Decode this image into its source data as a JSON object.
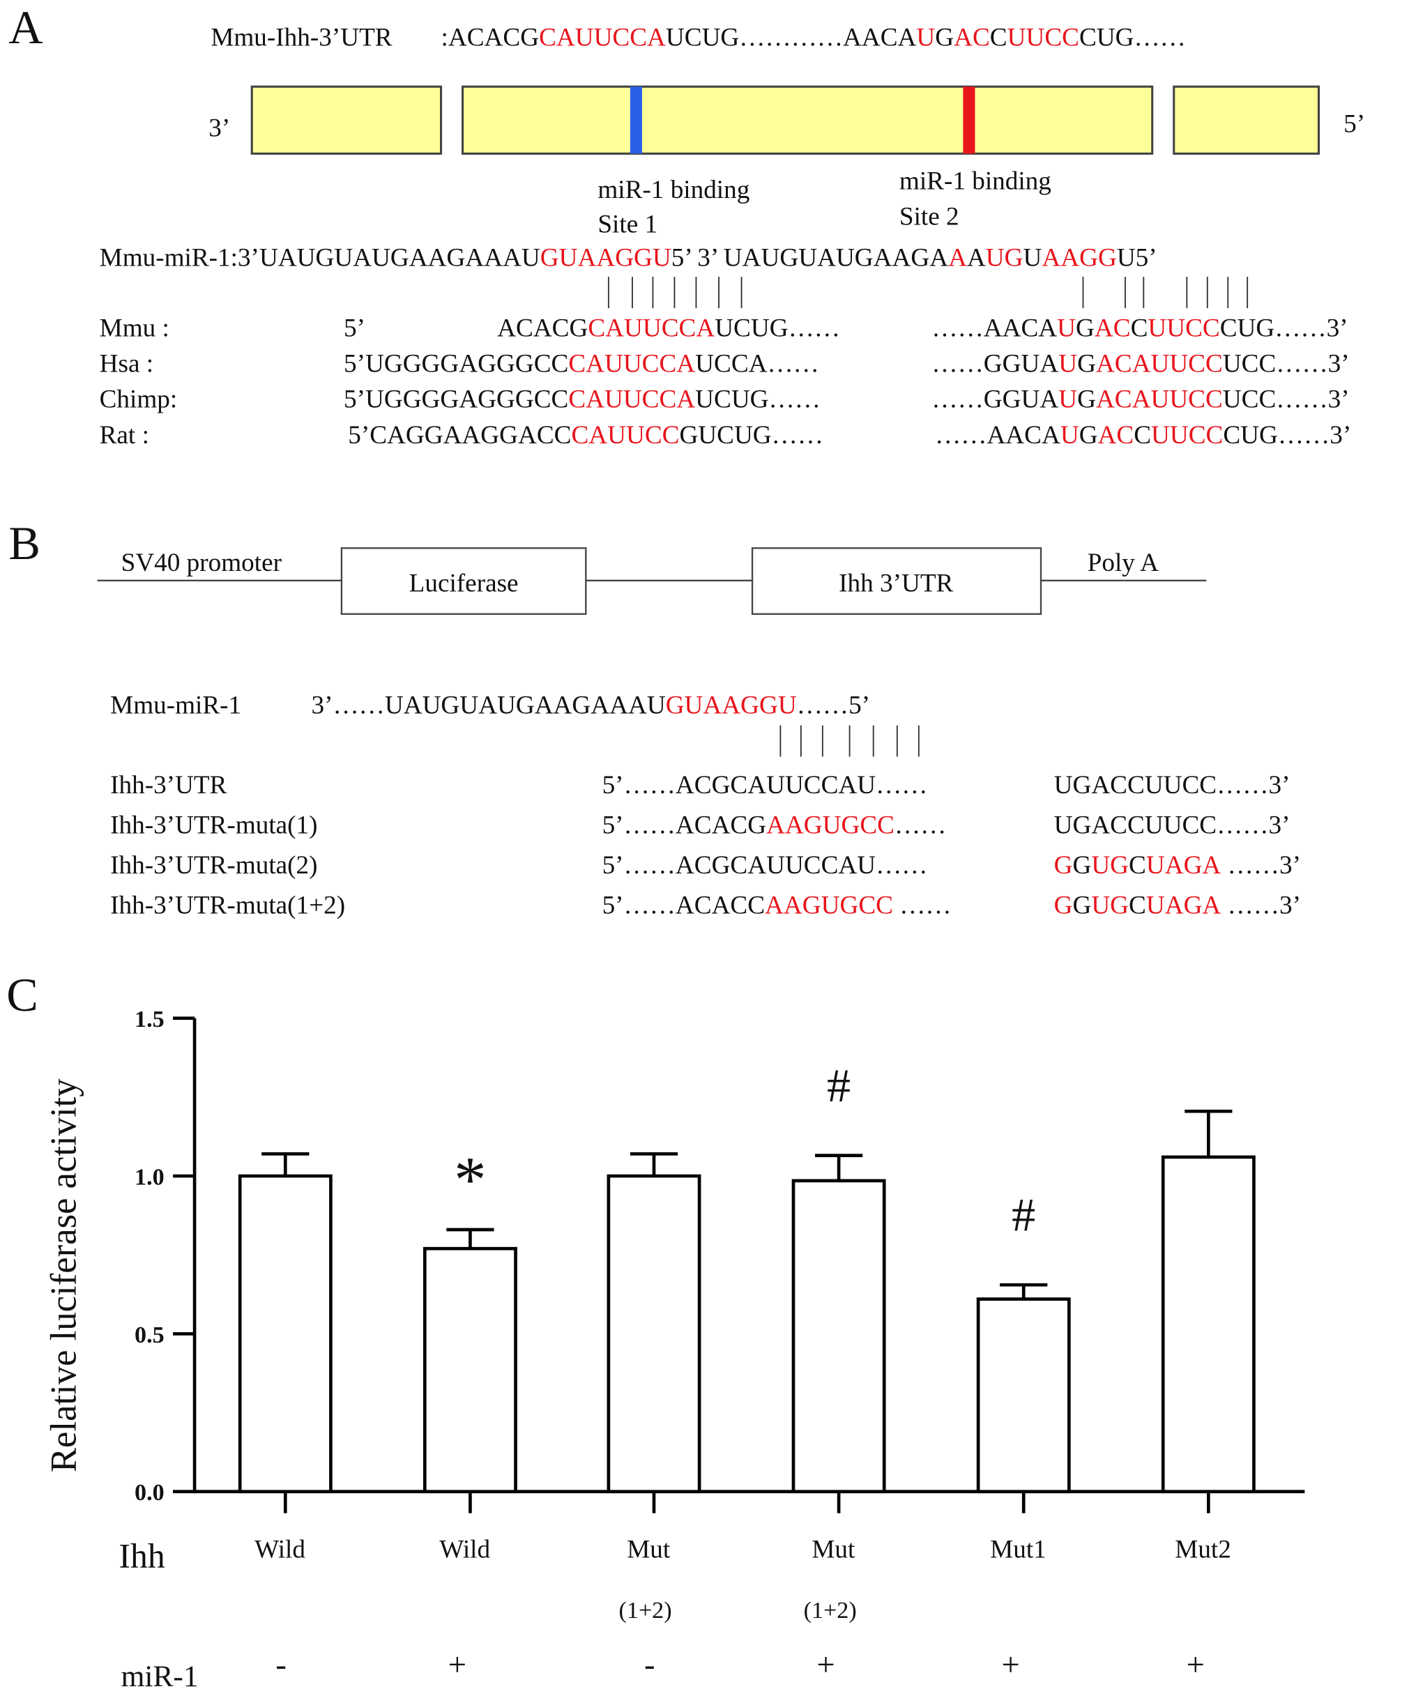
{
  "colors": {
    "highlight": "#e8141b",
    "box_fill": "#ffff99",
    "site1": "#2a5fe8",
    "site2": "#e8141b",
    "ink": "#111111"
  },
  "panel_a": {
    "letter": "A",
    "utr_label": "Mmu-Ihh-3’UTR",
    "utr_seq": [
      {
        "t": ":ACACG"
      },
      {
        "t": "CAUUCCA",
        "r": 1
      },
      {
        "t": "UCUG…………AACA"
      },
      {
        "t": "U",
        "r": 1
      },
      {
        "t": "G"
      },
      {
        "t": "AC",
        "r": 1
      },
      {
        "t": "C"
      },
      {
        "t": "UUCC",
        "r": 1
      },
      {
        "t": "CUG……"
      }
    ],
    "end3": "3’",
    "end5": "5’",
    "site1_label": "miR-1 binding",
    "site1_name": "Site 1",
    "site2_label": "miR-1 binding",
    "site2_name": "Site 2",
    "mir_seq": [
      {
        "t": "Mmu-miR-1:3’UAUGUAUGAAGAAAU"
      },
      {
        "t": "GUAAGGU",
        "r": 1
      },
      {
        "t": "5’ 3’ UAUGUAUGAAGA"
      },
      {
        "t": "A",
        "r": 1
      },
      {
        "t": "A"
      },
      {
        "t": "UG",
        "r": 1
      },
      {
        "t": "U"
      },
      {
        "t": "AAGG",
        "r": 1
      },
      {
        "t": "U5’"
      }
    ],
    "rows": [
      {
        "label": "Mmu :",
        "prefix": "5’",
        "left": [
          {
            "t": "ACACG"
          },
          {
            "t": "CAUUCCA",
            "r": 1
          },
          {
            "t": "UCUG……"
          }
        ],
        "right": [
          {
            "t": "……AACA"
          },
          {
            "t": "U",
            "r": 1
          },
          {
            "t": "G"
          },
          {
            "t": "AC",
            "r": 1
          },
          {
            "t": "C"
          },
          {
            "t": "UUCC",
            "r": 1
          },
          {
            "t": "CUG……3’"
          }
        ]
      },
      {
        "label": "Hsa :",
        "prefix": "",
        "left": [
          {
            "t": "5’UGGGGAGGGCC"
          },
          {
            "t": "CAUUCCA",
            "r": 1
          },
          {
            "t": "UCCA……"
          }
        ],
        "right": [
          {
            "t": "……GGUA"
          },
          {
            "t": "U",
            "r": 1
          },
          {
            "t": "G"
          },
          {
            "t": "ACAUUCC",
            "r": 1
          },
          {
            "t": "UCC……3’"
          }
        ]
      },
      {
        "label": "Chimp:",
        "prefix": "",
        "left": [
          {
            "t": "5’UGGGGAGGGCC"
          },
          {
            "t": "CAUUCCA",
            "r": 1
          },
          {
            "t": "UCUG……"
          }
        ],
        "right": [
          {
            "t": "……GGUA"
          },
          {
            "t": "U",
            "r": 1
          },
          {
            "t": "G"
          },
          {
            "t": "ACAUUCC",
            "r": 1
          },
          {
            "t": "UCC……3’"
          }
        ]
      },
      {
        "label": "Rat :",
        "prefix": "",
        "left": [
          {
            "t": "5’CAGGAAGGACC"
          },
          {
            "t": "CAUUCC",
            "r": 1
          },
          {
            "t": "GUCUG……"
          }
        ],
        "right": [
          {
            "t": "……AACA"
          },
          {
            "t": "U",
            "r": 1
          },
          {
            "t": "G"
          },
          {
            "t": "AC",
            "r": 1
          },
          {
            "t": "C"
          },
          {
            "t": "UUCC",
            "r": 1
          },
          {
            "t": "CUG……3’"
          }
        ]
      }
    ]
  },
  "panel_b": {
    "letter": "B",
    "promoter": "SV40 promoter",
    "luciferase": "Luciferase",
    "utr_box": "Ihh 3’UTR",
    "polya": "Poly A",
    "mir_label": "Mmu-miR-1",
    "mir_seq": [
      {
        "t": "3’……UAUGUAUGAAGAAAU"
      },
      {
        "t": "GUAAGGU",
        "r": 1
      },
      {
        "t": "……5’"
      }
    ],
    "rows": [
      {
        "label": "Ihh-3’UTR",
        "left": [
          {
            "t": "5’……ACGCAUUCCAU……"
          }
        ],
        "right": [
          {
            "t": "UGACCUUCC……3’"
          }
        ]
      },
      {
        "label": "Ihh-3’UTR-muta(1)",
        "left": [
          {
            "t": "5’……ACACG"
          },
          {
            "t": "AAGUGCC",
            "r": 1
          },
          {
            "t": "……"
          }
        ],
        "right": [
          {
            "t": "UGACCUUCC……3’"
          }
        ]
      },
      {
        "label": "Ihh-3’UTR-muta(2)",
        "left": [
          {
            "t": "5’……ACGCAUUCCAU……"
          }
        ],
        "right": [
          {
            "t": "G",
            "r": 1
          },
          {
            "t": "G"
          },
          {
            "t": "UG",
            "r": 1
          },
          {
            "t": "C"
          },
          {
            "t": "UAGA",
            "r": 1
          },
          {
            "t": " ……3’"
          }
        ]
      },
      {
        "label": "Ihh-3’UTR-muta(1+2)",
        "left": [
          {
            "t": "5’……ACACC"
          },
          {
            "t": "AAGUGCC",
            "r": 1
          },
          {
            "t": " ……"
          }
        ],
        "right": [
          {
            "t": "G",
            "r": 1
          },
          {
            "t": "G"
          },
          {
            "t": "UG",
            "r": 1
          },
          {
            "t": "C"
          },
          {
            "t": "UAGA",
            "r": 1
          },
          {
            "t": " ……3’"
          }
        ]
      }
    ]
  },
  "chart_data": {
    "type": "bar",
    "panel_letter": "C",
    "ylabel": "Relative luciferase activity",
    "ylim": [
      0,
      1.5
    ],
    "yticks": [
      "0.0",
      "0.5",
      "1.0",
      "1.5"
    ],
    "ytick_values": [
      0,
      0.5,
      1.0,
      1.5
    ],
    "row_labels": {
      "ihh": "Ihh",
      "mir": "miR-1"
    },
    "categories": [
      {
        "ihh": "Wild",
        "sub": "",
        "mir": "-",
        "value": 1.0,
        "error": 0.07,
        "mark": ""
      },
      {
        "ihh": "Wild",
        "sub": "",
        "mir": "+",
        "value": 0.77,
        "error": 0.06,
        "mark": "*"
      },
      {
        "ihh": "Mut",
        "sub": "(1+2)",
        "mir": "-",
        "value": 1.0,
        "error": 0.07,
        "mark": ""
      },
      {
        "ihh": "Mut",
        "sub": "(1+2)",
        "mir": "+",
        "value": 0.985,
        "error": 0.08,
        "mark": "#"
      },
      {
        "ihh": "Mut1",
        "sub": "",
        "mir": "+",
        "value": 0.61,
        "error": 0.045,
        "mark": "#"
      },
      {
        "ihh": "Mut2",
        "sub": "",
        "mir": "+",
        "value": 1.06,
        "error": 0.145,
        "mark": ""
      }
    ]
  }
}
